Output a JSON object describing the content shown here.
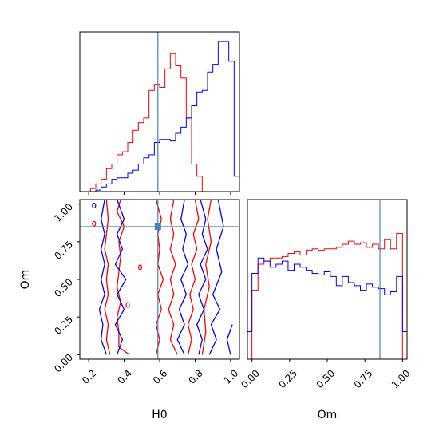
{
  "chart_data": {
    "type": "corner",
    "parameters": [
      "H0",
      "Om"
    ],
    "truth": {
      "H0": 0.59,
      "Om": 0.85
    },
    "colors": {
      "red": "#ff0000",
      "blue": "#0000ff",
      "truth": "#4682b4"
    },
    "panels": {
      "h0_marginal": {
        "type": "histogram",
        "xlim": [
          0.15,
          1.05
        ],
        "ylim": [
          0,
          1
        ],
        "series": [
          {
            "color": "#ff0000",
            "bins": [
              0.15,
              0.18,
              0.21,
              0.24,
              0.27,
              0.3,
              0.33,
              0.36,
              0.39,
              0.42,
              0.45,
              0.48,
              0.51,
              0.54,
              0.57,
              0.6,
              0.63,
              0.66,
              0.69,
              0.72,
              0.75,
              0.78,
              0.81,
              0.84,
              0.87,
              0.9,
              0.93,
              0.96,
              0.99,
              1.02,
              1.05
            ],
            "values": [
              0.0,
              0.0,
              0.02,
              0.05,
              0.08,
              0.15,
              0.18,
              0.24,
              0.26,
              0.32,
              0.4,
              0.45,
              0.48,
              0.66,
              0.7,
              0.68,
              0.8,
              0.9,
              0.82,
              0.74,
              0.48,
              0.18,
              0.1,
              0.0,
              0.0,
              0.0,
              0.0,
              0.0,
              0.0,
              0.0
            ]
          },
          {
            "color": "#0000ff",
            "bins": [
              0.15,
              0.18,
              0.21,
              0.24,
              0.27,
              0.3,
              0.33,
              0.36,
              0.39,
              0.42,
              0.45,
              0.48,
              0.51,
              0.54,
              0.57,
              0.6,
              0.63,
              0.66,
              0.69,
              0.72,
              0.75,
              0.78,
              0.81,
              0.84,
              0.87,
              0.9,
              0.93,
              0.96,
              0.99,
              1.02,
              1.05
            ],
            "values": [
              0.0,
              0.0,
              0.0,
              0.01,
              0.03,
              0.05,
              0.08,
              0.09,
              0.09,
              0.12,
              0.14,
              0.18,
              0.22,
              0.24,
              0.32,
              0.34,
              0.34,
              0.33,
              0.38,
              0.42,
              0.48,
              0.56,
              0.65,
              0.66,
              0.78,
              0.83,
              0.98,
              0.98,
              0.85,
              0.1
            ]
          }
        ]
      },
      "om_marginal": {
        "type": "histogram",
        "xlim": [
          -0.03,
          1.03
        ],
        "ylim": [
          0,
          1
        ],
        "series": [
          {
            "color": "#ff0000",
            "bins": [
              -0.03,
              0.0,
              0.04,
              0.08,
              0.12,
              0.16,
              0.2,
              0.24,
              0.28,
              0.32,
              0.36,
              0.4,
              0.44,
              0.48,
              0.52,
              0.56,
              0.6,
              0.64,
              0.68,
              0.72,
              0.76,
              0.8,
              0.84,
              0.88,
              0.92,
              0.96,
              1.0,
              1.03
            ],
            "values": [
              0.0,
              0.45,
              0.62,
              0.64,
              0.66,
              0.66,
              0.67,
              0.69,
              0.7,
              0.68,
              0.71,
              0.72,
              0.71,
              0.72,
              0.72,
              0.73,
              0.75,
              0.77,
              0.75,
              0.76,
              0.73,
              0.75,
              0.72,
              0.78,
              0.72,
              0.82,
              0.0
            ]
          },
          {
            "color": "#0000ff",
            "bins": [
              -0.03,
              0.0,
              0.04,
              0.08,
              0.12,
              0.16,
              0.2,
              0.24,
              0.28,
              0.32,
              0.36,
              0.4,
              0.44,
              0.48,
              0.52,
              0.56,
              0.6,
              0.64,
              0.68,
              0.72,
              0.76,
              0.8,
              0.84,
              0.88,
              0.92,
              0.96,
              1.0,
              1.03
            ],
            "values": [
              0.18,
              0.56,
              0.66,
              0.64,
              0.6,
              0.62,
              0.64,
              0.58,
              0.62,
              0.6,
              0.58,
              0.56,
              0.55,
              0.57,
              0.54,
              0.48,
              0.54,
              0.5,
              0.48,
              0.45,
              0.49,
              0.47,
              0.46,
              0.42,
              0.44,
              0.54,
              0.18
            ]
          }
        ]
      },
      "h0_om_contours": {
        "type": "contour",
        "xlim": [
          0.15,
          1.05
        ],
        "ylim": [
          -0.03,
          1.03
        ],
        "contours": [
          {
            "color": "#ff0000",
            "points": [
              [
                0.32,
                0.0
              ],
              [
                0.3,
                0.1
              ],
              [
                0.31,
                0.2
              ],
              [
                0.29,
                0.3
              ],
              [
                0.31,
                0.4
              ],
              [
                0.3,
                0.5
              ],
              [
                0.31,
                0.6
              ],
              [
                0.29,
                0.7
              ],
              [
                0.3,
                0.8
              ],
              [
                0.31,
                0.9
              ],
              [
                0.3,
                1.03
              ]
            ]
          },
          {
            "color": "#ff0000",
            "points": [
              [
                0.43,
                0.0
              ],
              [
                0.37,
                0.05
              ],
              [
                0.37,
                0.15
              ],
              [
                0.36,
                0.25
              ],
              [
                0.38,
                0.35
              ],
              [
                0.36,
                0.45
              ],
              [
                0.37,
                0.55
              ],
              [
                0.38,
                0.65
              ],
              [
                0.37,
                0.75
              ],
              [
                0.4,
                0.85
              ],
              [
                0.36,
                0.95
              ],
              [
                0.38,
                1.03
              ]
            ]
          },
          {
            "color": "#ff0000",
            "points": [
              [
                0.58,
                0.0
              ],
              [
                0.6,
                0.1
              ],
              [
                0.58,
                0.2
              ],
              [
                0.61,
                0.3
              ],
              [
                0.59,
                0.4
              ],
              [
                0.62,
                0.5
              ],
              [
                0.59,
                0.6
              ],
              [
                0.6,
                0.7
              ],
              [
                0.59,
                0.8
              ],
              [
                0.61,
                0.9
              ],
              [
                0.58,
                1.03
              ]
            ]
          },
          {
            "color": "#ff0000",
            "points": [
              [
                0.7,
                0.0
              ],
              [
                0.66,
                0.1
              ],
              [
                0.68,
                0.2
              ],
              [
                0.65,
                0.3
              ],
              [
                0.68,
                0.4
              ],
              [
                0.66,
                0.5
              ],
              [
                0.69,
                0.6
              ],
              [
                0.66,
                0.7
              ],
              [
                0.68,
                0.8
              ],
              [
                0.66,
                0.9
              ],
              [
                0.68,
                1.03
              ]
            ]
          },
          {
            "color": "#ff0000",
            "points": [
              [
                0.76,
                0.0
              ],
              [
                0.78,
                0.1
              ],
              [
                0.76,
                0.2
              ],
              [
                0.79,
                0.3
              ],
              [
                0.77,
                0.4
              ],
              [
                0.8,
                0.5
              ],
              [
                0.78,
                0.6
              ],
              [
                0.81,
                0.7
              ],
              [
                0.79,
                0.8
              ],
              [
                0.82,
                0.9
              ],
              [
                0.8,
                1.03
              ]
            ]
          },
          {
            "color": "#ff0000",
            "points": [
              [
                0.84,
                0.0
              ],
              [
                0.86,
                0.15
              ],
              [
                0.85,
                0.3
              ],
              [
                0.88,
                0.45
              ],
              [
                0.86,
                0.6
              ],
              [
                0.89,
                0.75
              ],
              [
                0.87,
                0.9
              ],
              [
                0.89,
                1.03
              ]
            ]
          },
          {
            "color": "#0000ff",
            "points": [
              [
                0.3,
                0.0
              ],
              [
                0.27,
                0.1
              ],
              [
                0.28,
                0.2
              ],
              [
                0.26,
                0.3
              ],
              [
                0.29,
                0.4
              ],
              [
                0.27,
                0.5
              ],
              [
                0.29,
                0.6
              ],
              [
                0.27,
                0.7
              ],
              [
                0.29,
                0.8
              ],
              [
                0.27,
                0.9
              ],
              [
                0.29,
                1.03
              ]
            ]
          },
          {
            "color": "#0000ff",
            "points": [
              [
                0.36,
                0.0
              ],
              [
                0.39,
                0.1
              ],
              [
                0.35,
                0.2
              ],
              [
                0.4,
                0.3
              ],
              [
                0.36,
                0.4
              ],
              [
                0.41,
                0.5
              ],
              [
                0.35,
                0.6
              ],
              [
                0.39,
                0.7
              ],
              [
                0.36,
                0.8
              ],
              [
                0.4,
                0.9
              ],
              [
                0.36,
                1.03
              ]
            ]
          },
          {
            "color": "#0000ff",
            "points": [
              [
                0.74,
                0.0
              ],
              [
                0.7,
                0.1
              ],
              [
                0.74,
                0.2
              ],
              [
                0.71,
                0.3
              ],
              [
                0.75,
                0.4
              ],
              [
                0.72,
                0.5
              ],
              [
                0.76,
                0.6
              ],
              [
                0.73,
                0.7
              ],
              [
                0.75,
                0.8
              ],
              [
                0.72,
                0.9
              ],
              [
                0.74,
                1.03
              ]
            ]
          },
          {
            "color": "#0000ff",
            "points": [
              [
                0.82,
                0.0
              ],
              [
                0.84,
                0.1
              ],
              [
                0.81,
                0.2
              ],
              [
                0.85,
                0.3
              ],
              [
                0.82,
                0.4
              ],
              [
                0.86,
                0.5
              ],
              [
                0.83,
                0.6
              ],
              [
                0.87,
                0.7
              ],
              [
                0.84,
                0.8
              ],
              [
                0.86,
                0.9
              ],
              [
                0.83,
                1.03
              ]
            ]
          },
          {
            "color": "#0000ff",
            "points": [
              [
                0.88,
                0.0
              ],
              [
                0.92,
                0.1
              ],
              [
                0.89,
                0.2
              ],
              [
                0.94,
                0.3
              ],
              [
                0.9,
                0.4
              ],
              [
                0.95,
                0.55
              ],
              [
                0.92,
                0.7
              ],
              [
                0.96,
                0.85
              ],
              [
                0.93,
                1.03
              ]
            ]
          },
          {
            "color": "#0000ff",
            "points": [
              [
                1.0,
                0.0
              ],
              [
                0.98,
                0.1
              ],
              [
                1.01,
                0.2
              ]
            ]
          }
        ],
        "markers": [
          {
            "color": "#ff0000",
            "x": 0.49,
            "y": 0.58
          },
          {
            "color": "#ff0000",
            "x": 0.42,
            "y": 0.33
          },
          {
            "color": "#0000ff",
            "x": 0.23,
            "y": 0.99
          },
          {
            "color": "#ff0000",
            "x": 0.23,
            "y": 0.87
          }
        ]
      }
    },
    "axes": {
      "h0": {
        "label": "H0",
        "ticks": [
          0.2,
          0.4,
          0.6,
          0.8,
          1.0
        ],
        "tick_labels": [
          "0.2",
          "0.4",
          "0.6",
          "0.8",
          "1.0"
        ]
      },
      "om_y": {
        "label": "Om",
        "ticks": [
          0.0,
          0.25,
          0.5,
          0.75,
          1.0
        ],
        "tick_labels": [
          "0.00",
          "0.25",
          "0.50",
          "0.75",
          "1.00"
        ]
      },
      "om_x": {
        "label": "Om",
        "ticks": [
          0.0,
          0.25,
          0.5,
          0.75,
          1.0
        ],
        "tick_labels": [
          "0.00",
          "0.25",
          "0.50",
          "0.75",
          "1.00"
        ]
      }
    }
  }
}
